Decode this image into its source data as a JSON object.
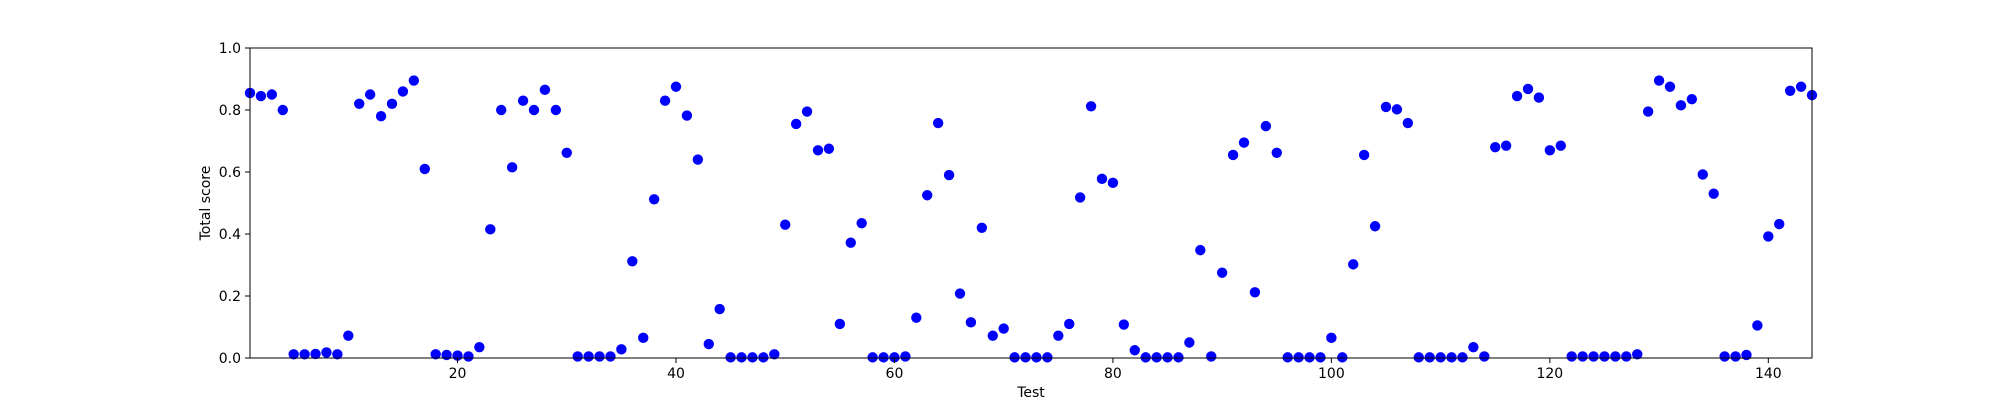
{
  "chart_data": {
    "type": "scatter",
    "title": "",
    "xlabel": "Test",
    "ylabel": "Total score",
    "xlim": [
      1,
      144
    ],
    "ylim": [
      0.0,
      1.0
    ],
    "xticks": [
      20,
      40,
      60,
      80,
      100,
      120,
      140
    ],
    "xtick_labels": [
      "20",
      "40",
      "60",
      "80",
      "100",
      "120",
      "140"
    ],
    "yticks": [
      0.0,
      0.2,
      0.4,
      0.6,
      0.8,
      1.0
    ],
    "ytick_labels": [
      "0.0",
      "0.2",
      "0.4",
      "0.6",
      "0.8",
      "1.0"
    ],
    "grid": false,
    "color": "#0000ff",
    "x": [
      1,
      2,
      3,
      4,
      5,
      6,
      7,
      8,
      9,
      10,
      11,
      12,
      13,
      14,
      15,
      16,
      17,
      18,
      19,
      20,
      21,
      22,
      23,
      24,
      25,
      26,
      27,
      28,
      29,
      30,
      31,
      32,
      33,
      34,
      35,
      36,
      37,
      38,
      39,
      40,
      41,
      42,
      43,
      44,
      45,
      46,
      47,
      48,
      49,
      50,
      51,
      52,
      53,
      54,
      55,
      56,
      57,
      58,
      59,
      60,
      61,
      62,
      63,
      64,
      65,
      66,
      67,
      68,
      69,
      70,
      71,
      72,
      73,
      74,
      75,
      76,
      77,
      78,
      79,
      80,
      81,
      82,
      83,
      84,
      85,
      86,
      87,
      88,
      89,
      90,
      91,
      92,
      93,
      94,
      95,
      96,
      97,
      98,
      99,
      100,
      101,
      102,
      103,
      104,
      105,
      106,
      107,
      108,
      109,
      110,
      111,
      112,
      113,
      114,
      115,
      116,
      117,
      118,
      119,
      120,
      121,
      122,
      123,
      124,
      125,
      126,
      127,
      128,
      129,
      130,
      131,
      132,
      133,
      134,
      135,
      136,
      137,
      138,
      139,
      140,
      141,
      142,
      143,
      144
    ],
    "y": [
      0.855,
      0.845,
      0.85,
      0.8,
      0.012,
      0.012,
      0.013,
      0.018,
      0.012,
      0.072,
      0.82,
      0.85,
      0.78,
      0.82,
      0.86,
      0.895,
      0.61,
      0.012,
      0.01,
      0.008,
      0.005,
      0.035,
      0.415,
      0.8,
      0.615,
      0.83,
      0.8,
      0.865,
      0.8,
      0.662,
      0.005,
      0.005,
      0.005,
      0.005,
      0.028,
      0.312,
      0.065,
      0.512,
      0.83,
      0.875,
      0.782,
      0.64,
      0.045,
      0.158,
      0.002,
      0.002,
      0.002,
      0.002,
      0.012,
      0.43,
      0.755,
      0.795,
      0.67,
      0.675,
      0.11,
      0.372,
      0.435,
      0.002,
      0.002,
      0.002,
      0.005,
      0.13,
      0.525,
      0.758,
      0.59,
      0.208,
      0.115,
      0.42,
      0.072,
      0.095,
      0.002,
      0.002,
      0.002,
      0.002,
      0.072,
      0.11,
      0.518,
      0.812,
      0.578,
      0.565,
      0.108,
      0.025,
      0.002,
      0.002,
      0.002,
      0.002,
      0.05,
      0.348,
      0.005,
      0.275,
      0.655,
      0.695,
      0.212,
      0.748,
      0.662,
      0.002,
      0.002,
      0.002,
      0.002,
      0.065,
      0.002,
      0.302,
      0.655,
      0.425,
      0.81,
      0.802,
      0.758,
      0.002,
      0.002,
      0.002,
      0.002,
      0.002,
      0.035,
      0.005,
      0.68,
      0.685,
      0.845,
      0.868,
      0.84,
      0.67,
      0.685,
      0.005,
      0.005,
      0.005,
      0.005,
      0.005,
      0.005,
      0.012,
      0.795,
      0.895,
      0.875,
      0.815,
      0.835,
      0.592,
      0.53,
      0.005,
      0.005,
      0.01,
      0.105,
      0.392,
      0.432,
      0.862,
      0.875,
      0.848
    ]
  }
}
